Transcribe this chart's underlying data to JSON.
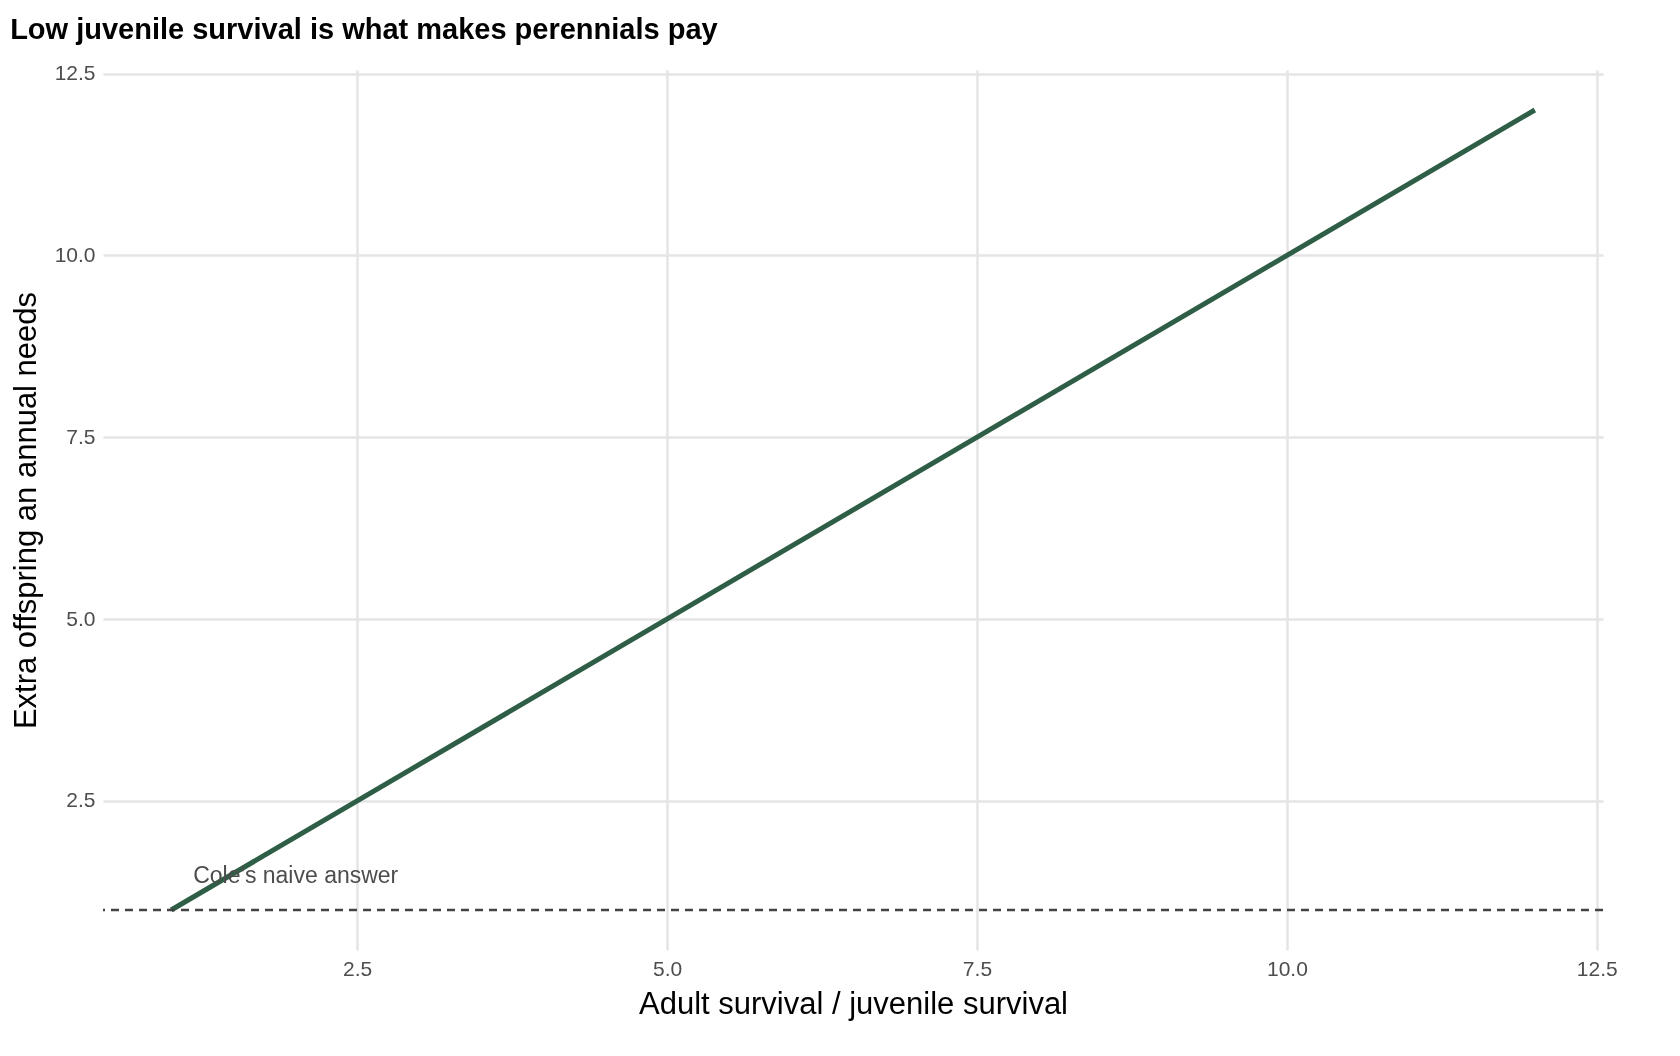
{
  "chart_data": {
    "type": "line",
    "title": "Low juvenile survival is what makes perennials pay",
    "xlabel": "Adult survival / juvenile survival",
    "ylabel": "Extra offspring an annual needs",
    "series": [
      {
        "color": "#2e5e45",
        "x": [
          1,
          12
        ],
        "values": [
          1,
          12
        ]
      }
    ],
    "xlim": [
      0.45,
      12.55
    ],
    "xticks": [
      {
        "value": 2.5,
        "label": "2.5"
      },
      {
        "value": 5,
        "label": "5.0"
      },
      {
        "value": 7.5,
        "label": "7.5"
      },
      {
        "value": 10,
        "label": "10.0"
      },
      {
        "value": 12.5,
        "label": "12.5"
      }
    ],
    "ylim": [
      0.45,
      12.55
    ],
    "yticks": [
      {
        "value": 2.5,
        "label": "2.5"
      },
      {
        "value": 5,
        "label": "5.0"
      },
      {
        "value": 7.5,
        "label": "7.5"
      },
      {
        "value": 10,
        "label": "10.0"
      },
      {
        "value": 12.5,
        "label": "12.5"
      }
    ],
    "ref_lines": [
      {
        "axis": "y",
        "value": 1,
        "label": "Cole's naive answer",
        "color": "#444444",
        "line_style": "dashed"
      }
    ],
    "grid": true,
    "line_style": "solid",
    "marker": "none"
  }
}
